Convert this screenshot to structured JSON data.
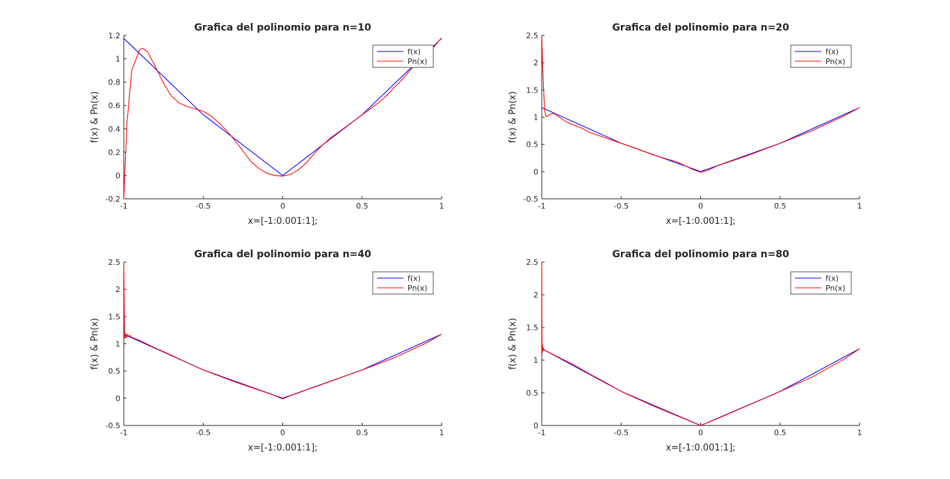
{
  "colors": {
    "f": "#0000ff",
    "pn": "#ff0000",
    "axis": "#262626",
    "background": "#ffffff"
  },
  "chart_data": [
    {
      "type": "line",
      "title": "Grafica del polinomio para n=10",
      "xlabel": "x=[-1:0.001:1];",
      "ylabel": "f(x) & Pn(x)",
      "xlim": [
        -1,
        1
      ],
      "ylim": [
        -0.2,
        1.2
      ],
      "xticks": [
        "-1",
        "-0.5",
        "0",
        "0.5",
        "1"
      ],
      "yticks": [
        "-0.2",
        "0",
        "0.2",
        "0.4",
        "0.6",
        "0.8",
        "1",
        "1.2"
      ],
      "legend_position": "top-right",
      "series": [
        {
          "name": "f(x)",
          "color": "#0000ff",
          "x": [
            -1,
            -0.5,
            0,
            0.5,
            1
          ],
          "y": [
            1.175,
            0.521,
            0,
            0.521,
            1.175
          ]
        },
        {
          "name": "Pn(x)",
          "color": "#ff0000",
          "x": [
            -1,
            -0.98,
            -0.95,
            -0.9,
            -0.88,
            -0.85,
            -0.8,
            -0.75,
            -0.7,
            -0.65,
            -0.6,
            -0.55,
            -0.5,
            -0.45,
            -0.4,
            -0.35,
            -0.3,
            -0.25,
            -0.2,
            -0.15,
            -0.1,
            -0.05,
            0,
            0.05,
            0.1,
            0.15,
            0.2,
            0.25,
            0.3,
            0.35,
            0.4,
            0.45,
            0.5,
            0.55,
            0.6,
            0.65,
            0.7,
            0.75,
            0.8,
            0.85,
            0.9,
            0.95,
            1
          ],
          "y": [
            -0.2,
            0.45,
            0.9,
            1.08,
            1.09,
            1.06,
            0.93,
            0.79,
            0.68,
            0.62,
            0.59,
            0.57,
            0.55,
            0.51,
            0.45,
            0.38,
            0.3,
            0.21,
            0.12,
            0.06,
            0.02,
            0.0,
            -0.005,
            0.01,
            0.05,
            0.11,
            0.19,
            0.26,
            0.32,
            0.37,
            0.42,
            0.47,
            0.52,
            0.57,
            0.62,
            0.68,
            0.75,
            0.82,
            0.9,
            0.97,
            1.04,
            1.1,
            1.18
          ]
        }
      ]
    },
    {
      "type": "line",
      "title": "Grafica del polinomio para n=20",
      "xlabel": "x=[-1:0.001:1];",
      "ylabel": "f(x) & Pn(x)",
      "xlim": [
        -1,
        1
      ],
      "ylim": [
        -0.5,
        2.5
      ],
      "xticks": [
        "-1",
        "-0.5",
        "0",
        "0.5",
        "1"
      ],
      "yticks": [
        "-0.5",
        "0",
        "0.5",
        "1",
        "1.5",
        "2",
        "2.5"
      ],
      "legend_position": "top-right",
      "series": [
        {
          "name": "f(x)",
          "color": "#0000ff",
          "x": [
            -1,
            -0.5,
            0,
            0.5,
            1
          ],
          "y": [
            1.175,
            0.521,
            0,
            0.521,
            1.175
          ]
        },
        {
          "name": "Pn(x)",
          "color": "#ff0000",
          "x": [
            -1,
            -0.995,
            -0.99,
            -0.985,
            -0.98,
            -0.975,
            -0.97,
            -0.96,
            -0.95,
            -0.93,
            -0.91,
            -0.89,
            -0.86,
            -0.83,
            -0.8,
            -0.75,
            -0.7,
            -0.6,
            -0.5,
            -0.4,
            -0.3,
            -0.2,
            -0.15,
            -0.1,
            -0.05,
            0,
            0.05,
            0.1,
            0.2,
            0.3,
            0.5,
            0.7,
            0.9,
            1
          ],
          "y": [
            2.48,
            2.0,
            1.6,
            1.3,
            1.1,
            1.03,
            1.01,
            1.02,
            1.05,
            1.07,
            1.05,
            1.0,
            0.94,
            0.89,
            0.86,
            0.8,
            0.72,
            0.62,
            0.52,
            0.42,
            0.31,
            0.22,
            0.18,
            0.11,
            0.04,
            -0.01,
            0.03,
            0.1,
            0.2,
            0.3,
            0.52,
            0.75,
            1.02,
            1.175
          ]
        }
      ]
    },
    {
      "type": "line",
      "title": "Grafica del polinomio para n=40",
      "xlabel": "x=[-1:0.001:1];",
      "ylabel": "f(x) & Pn(x)",
      "xlim": [
        -1,
        1
      ],
      "ylim": [
        -0.5,
        2.5
      ],
      "xticks": [
        "-1",
        "-0.5",
        "0",
        "0.5",
        "1"
      ],
      "yticks": [
        "-0.5",
        "0",
        "0.5",
        "1",
        "1.5",
        "2",
        "2.5"
      ],
      "legend_position": "top-right",
      "series": [
        {
          "name": "f(x)",
          "color": "#0000ff",
          "x": [
            -1,
            -0.5,
            0,
            0.5,
            1
          ],
          "y": [
            1.175,
            0.521,
            0,
            0.521,
            1.175
          ]
        },
        {
          "name": "Pn(x)",
          "color": "#ff0000",
          "x": [
            -1,
            -0.998,
            -0.996,
            -0.994,
            -0.992,
            -0.99,
            -0.985,
            -0.98,
            -0.975,
            -0.97,
            -0.96,
            -0.95,
            -0.9,
            -0.8,
            -0.7,
            -0.6,
            -0.5,
            -0.4,
            -0.3,
            -0.2,
            -0.1,
            -0.05,
            -0.02,
            0,
            0.02,
            0.05,
            0.1,
            0.3,
            0.5,
            0.7,
            0.9,
            1
          ],
          "y": [
            2.45,
            1.9,
            1.4,
            1.1,
            1.2,
            1.1,
            1.18,
            1.12,
            1.17,
            1.14,
            1.15,
            1.12,
            1.06,
            0.92,
            0.79,
            0.65,
            0.52,
            0.41,
            0.3,
            0.2,
            0.1,
            0.05,
            0.01,
            -0.01,
            0.01,
            0.05,
            0.1,
            0.31,
            0.52,
            0.74,
            1.01,
            1.175
          ]
        }
      ]
    },
    {
      "type": "line",
      "title": "Grafica del polinomio para n=80",
      "xlabel": "x=[-1:0.001:1];",
      "ylabel": "f(x) & Pn(x)",
      "xlim": [
        -1,
        1
      ],
      "ylim": [
        0,
        2.5
      ],
      "xticks": [
        "-1",
        "-0.5",
        "0",
        "0.5",
        "1"
      ],
      "yticks": [
        "0",
        "0.5",
        "1",
        "1.5",
        "2",
        "2.5"
      ],
      "legend_position": "top-right",
      "series": [
        {
          "name": "f(x)",
          "color": "#0000ff",
          "x": [
            -1,
            -0.5,
            0,
            0.5,
            1
          ],
          "y": [
            1.175,
            0.521,
            0,
            0.521,
            1.175
          ]
        },
        {
          "name": "Pn(x)",
          "color": "#ff0000",
          "x": [
            -1,
            -0.999,
            -0.998,
            -0.997,
            -0.996,
            -0.995,
            -0.994,
            -0.993,
            -0.992,
            -0.99,
            -0.985,
            -0.98,
            -0.9,
            -0.8,
            -0.7,
            -0.6,
            -0.5,
            -0.4,
            -0.3,
            -0.2,
            -0.1,
            -0.01,
            0,
            0.01,
            0.1,
            0.3,
            0.5,
            0.7,
            0.9,
            1
          ],
          "y": [
            2.48,
            1.7,
            1.1,
            1.25,
            1.12,
            1.22,
            1.14,
            1.19,
            1.15,
            1.18,
            1.16,
            1.15,
            1.05,
            0.93,
            0.79,
            0.66,
            0.52,
            0.41,
            0.3,
            0.2,
            0.1,
            0.01,
            -0.005,
            0.01,
            0.1,
            0.31,
            0.52,
            0.74,
            1.01,
            1.175
          ]
        }
      ]
    }
  ]
}
